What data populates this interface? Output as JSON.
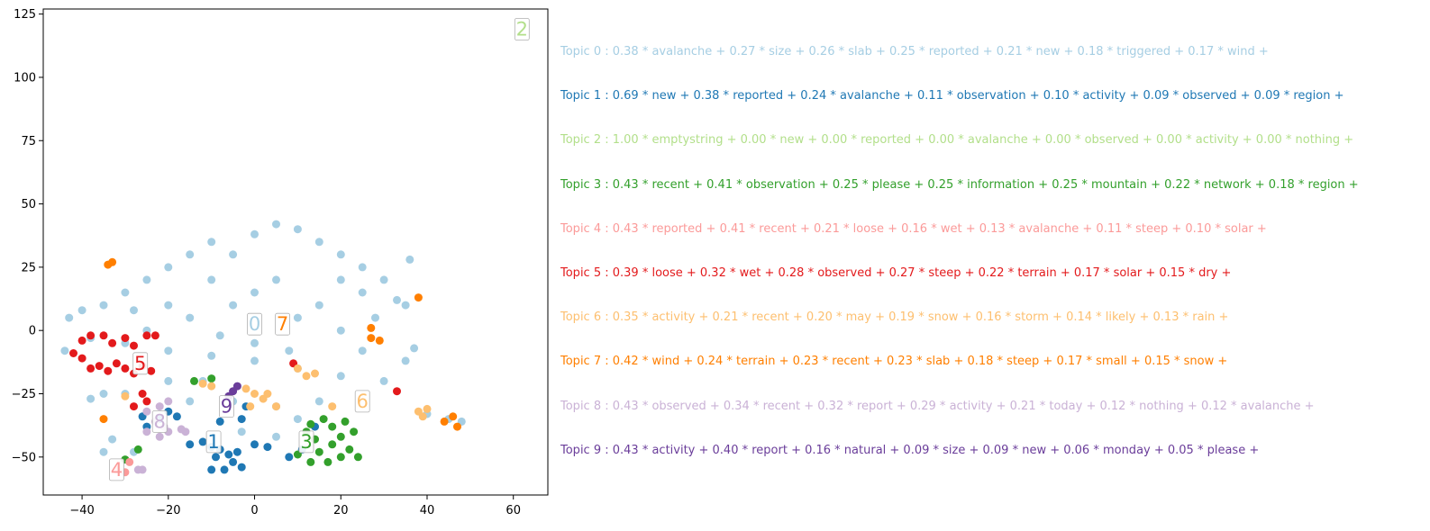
{
  "chart_data": {
    "type": "scatter",
    "title": "",
    "xlabel": "",
    "ylabel": "",
    "xlim": [
      -49,
      68
    ],
    "ylim": [
      -65,
      127
    ],
    "xticks": [
      -40,
      -20,
      0,
      20,
      40,
      60
    ],
    "xtick_labels": [
      "−40",
      "−20",
      "0",
      "20",
      "40",
      "60"
    ],
    "yticks": [
      -50,
      -25,
      0,
      25,
      50,
      75,
      100,
      125
    ],
    "ytick_labels": [
      "−50",
      "−25",
      "0",
      "25",
      "50",
      "75",
      "100",
      "125"
    ],
    "grid": false,
    "colors": [
      "#a6cee3",
      "#1f78b4",
      "#b2df8a",
      "#33a02c",
      "#fb9a99",
      "#e31a1c",
      "#fdbf6f",
      "#ff7f00",
      "#cab2d6",
      "#6a3d9a"
    ],
    "cluster_labels": [
      {
        "text": "0",
        "topic": 0,
        "x": 0,
        "y": 2.5
      },
      {
        "text": "1",
        "topic": 1,
        "x": -9.5,
        "y": -44
      },
      {
        "text": "2",
        "topic": 2,
        "x": 62,
        "y": 119
      },
      {
        "text": "3",
        "topic": 3,
        "x": 12,
        "y": -44
      },
      {
        "text": "4",
        "topic": 4,
        "x": -32,
        "y": -55
      },
      {
        "text": "5",
        "topic": 5,
        "x": -26.5,
        "y": -13
      },
      {
        "text": "6",
        "topic": 6,
        "x": 25,
        "y": -28
      },
      {
        "text": "7",
        "topic": 7,
        "x": 6.5,
        "y": 2.5
      },
      {
        "text": "8",
        "topic": 8,
        "x": -22,
        "y": -36
      },
      {
        "text": "9",
        "topic": 9,
        "x": -6.5,
        "y": -30
      }
    ],
    "series": [
      {
        "topic": 0,
        "points": [
          [
            -5,
            30
          ],
          [
            0,
            38
          ],
          [
            5,
            42
          ],
          [
            10,
            40
          ],
          [
            15,
            35
          ],
          [
            20,
            30
          ],
          [
            25,
            25
          ],
          [
            30,
            20
          ],
          [
            35,
            10
          ],
          [
            -10,
            35
          ],
          [
            -15,
            30
          ],
          [
            -20,
            25
          ],
          [
            -25,
            20
          ],
          [
            -30,
            15
          ],
          [
            -35,
            10
          ],
          [
            -40,
            8
          ],
          [
            -43,
            5
          ],
          [
            -38,
            -3
          ],
          [
            -30,
            -5
          ],
          [
            -20,
            -8
          ],
          [
            -10,
            -10
          ],
          [
            0,
            -12
          ],
          [
            10,
            -15
          ],
          [
            20,
            -18
          ],
          [
            30,
            -20
          ],
          [
            35,
            -12
          ],
          [
            -20,
            -20
          ],
          [
            -30,
            -25
          ],
          [
            -35,
            -25
          ],
          [
            -38,
            -27
          ],
          [
            -33,
            -43
          ],
          [
            -35,
            -48
          ],
          [
            -28,
            -48
          ],
          [
            -12,
            -20
          ],
          [
            -5,
            -28
          ],
          [
            5,
            -30
          ],
          [
            10,
            -35
          ],
          [
            40,
            -33
          ],
          [
            45,
            -35
          ],
          [
            48,
            -36
          ],
          [
            -44,
            -8
          ],
          [
            37,
            -7
          ],
          [
            36,
            28
          ],
          [
            -15,
            -28
          ],
          [
            15,
            -28
          ],
          [
            25,
            -8
          ],
          [
            28,
            5
          ],
          [
            33,
            12
          ],
          [
            -3,
            -40
          ],
          [
            5,
            -42
          ],
          [
            0,
            15
          ],
          [
            5,
            20
          ],
          [
            -5,
            10
          ],
          [
            10,
            5
          ],
          [
            -15,
            5
          ],
          [
            15,
            10
          ],
          [
            20,
            0
          ],
          [
            -25,
            0
          ],
          [
            -10,
            20
          ],
          [
            20,
            20
          ],
          [
            -20,
            10
          ],
          [
            25,
            15
          ],
          [
            0,
            -5
          ],
          [
            -8,
            -2
          ],
          [
            8,
            -8
          ],
          [
            -28,
            8
          ]
        ]
      },
      {
        "topic": 1,
        "points": [
          [
            -20,
            -32
          ],
          [
            -22,
            -35
          ],
          [
            -25,
            -38
          ],
          [
            -26,
            -34
          ],
          [
            -18,
            -34
          ],
          [
            -15,
            -45
          ],
          [
            -12,
            -44
          ],
          [
            -10,
            -46
          ],
          [
            -8,
            -47
          ],
          [
            -6,
            -49
          ],
          [
            -5,
            -52
          ],
          [
            -3,
            -54
          ],
          [
            -7,
            -55
          ],
          [
            -9,
            -50
          ],
          [
            -10,
            -55
          ],
          [
            -4,
            -48
          ],
          [
            -3,
            -35
          ],
          [
            0,
            -45
          ],
          [
            3,
            -46
          ],
          [
            8,
            -50
          ],
          [
            11,
            -47
          ],
          [
            14,
            -38
          ],
          [
            -8,
            -36
          ],
          [
            -2,
            -30
          ]
        ]
      },
      {
        "topic": 2,
        "points": []
      },
      {
        "topic": 3,
        "points": [
          [
            12,
            -40
          ],
          [
            14,
            -43
          ],
          [
            15,
            -48
          ],
          [
            18,
            -45
          ],
          [
            20,
            -42
          ],
          [
            22,
            -47
          ],
          [
            20,
            -50
          ],
          [
            24,
            -50
          ],
          [
            17,
            -52
          ],
          [
            13,
            -52
          ],
          [
            10,
            -49
          ],
          [
            23,
            -40
          ],
          [
            21,
            -36
          ],
          [
            18,
            -38
          ],
          [
            16,
            -35
          ],
          [
            13,
            -37
          ],
          [
            -14,
            -20
          ],
          [
            -10,
            -19
          ],
          [
            -27,
            -47
          ],
          [
            -30,
            -51
          ]
        ]
      },
      {
        "topic": 4,
        "points": [
          [
            -32,
            -55
          ],
          [
            -30,
            -56
          ],
          [
            -29,
            -52
          ]
        ]
      },
      {
        "topic": 5,
        "points": [
          [
            -42,
            -9
          ],
          [
            -40,
            -11
          ],
          [
            -38,
            -15
          ],
          [
            -36,
            -14
          ],
          [
            -34,
            -16
          ],
          [
            -32,
            -13
          ],
          [
            -30,
            -15
          ],
          [
            -28,
            -17
          ],
          [
            -26,
            -14
          ],
          [
            -24,
            -16
          ],
          [
            -38,
            -2
          ],
          [
            -35,
            -2
          ],
          [
            -30,
            -3
          ],
          [
            -25,
            -2
          ],
          [
            -23,
            -2
          ],
          [
            -28,
            -6
          ],
          [
            -33,
            -5
          ],
          [
            -40,
            -4
          ],
          [
            -26,
            -25
          ],
          [
            -25,
            -28
          ],
          [
            -28,
            -30
          ],
          [
            33,
            -24
          ],
          [
            9,
            -13
          ]
        ]
      },
      {
        "topic": 6,
        "points": [
          [
            -2,
            -23
          ],
          [
            0,
            -25
          ],
          [
            2,
            -27
          ],
          [
            5,
            -30
          ],
          [
            -1,
            -30
          ],
          [
            3,
            -25
          ],
          [
            10,
            -15
          ],
          [
            12,
            -18
          ],
          [
            14,
            -17
          ],
          [
            -12,
            -21
          ],
          [
            -10,
            -22
          ],
          [
            38,
            -32
          ],
          [
            39,
            -34
          ],
          [
            40,
            -31
          ],
          [
            18,
            -30
          ],
          [
            -30,
            -26
          ]
        ]
      },
      {
        "topic": 7,
        "points": [
          [
            -34,
            26
          ],
          [
            -33,
            27
          ],
          [
            -35,
            -35
          ],
          [
            38,
            13
          ],
          [
            29,
            -4
          ],
          [
            27,
            -3
          ],
          [
            27,
            1
          ],
          [
            44,
            -36
          ],
          [
            46,
            -34
          ],
          [
            47,
            -38
          ]
        ]
      },
      {
        "topic": 8,
        "points": [
          [
            -25,
            -32
          ],
          [
            -22,
            -30
          ],
          [
            -23,
            -36
          ],
          [
            -21,
            -38
          ],
          [
            -20,
            -40
          ],
          [
            -22,
            -42
          ],
          [
            -25,
            -40
          ],
          [
            -16,
            -40
          ],
          [
            -17,
            -39
          ],
          [
            -27,
            -55
          ],
          [
            -26,
            -55
          ],
          [
            -20,
            -28
          ]
        ]
      },
      {
        "topic": 9,
        "points": [
          [
            -5,
            -24
          ],
          [
            -6,
            -26
          ],
          [
            -4,
            -22
          ]
        ]
      }
    ]
  },
  "topics": [
    {
      "text": "Topic 0 : 0.38 * avalanche + 0.27 * size + 0.26 * slab + 0.25 * reported + 0.21 * new + 0.18 * triggered + 0.17 * wind +",
      "color": "#a6cee3"
    },
    {
      "text": "Topic 1 : 0.69 * new + 0.38 * reported + 0.24 * avalanche + 0.11 * observation + 0.10 * activity + 0.09 * observed + 0.09 * region +",
      "color": "#1f78b4"
    },
    {
      "text": "Topic 2 : 1.00 * emptystring + 0.00 * new + 0.00 * reported + 0.00 * avalanche + 0.00 * observed + 0.00 * activity + 0.00 * nothing +",
      "color": "#b2df8a"
    },
    {
      "text": "Topic 3 : 0.43 * recent + 0.41 * observation + 0.25 * please + 0.25 * information + 0.25 * mountain + 0.22 * network + 0.18 * region +",
      "color": "#33a02c"
    },
    {
      "text": "Topic 4 : 0.43 * reported + 0.41 * recent + 0.21 * loose + 0.16 * wet + 0.13 * avalanche + 0.11 * steep + 0.10 * solar +",
      "color": "#fb9a99"
    },
    {
      "text": "Topic 5 : 0.39 * loose + 0.32 * wet + 0.28 * observed + 0.27 * steep + 0.22 * terrain + 0.17 * solar + 0.15 * dry +",
      "color": "#e31a1c"
    },
    {
      "text": "Topic 6 : 0.35 * activity + 0.21 * recent + 0.20 * may + 0.19 * snow + 0.16 * storm + 0.14 * likely + 0.13 * rain +",
      "color": "#fdbf6f"
    },
    {
      "text": "Topic 7 : 0.42 * wind + 0.24 * terrain + 0.23 * recent + 0.23 * slab + 0.18 * steep + 0.17 * small + 0.15 * snow +",
      "color": "#ff7f00"
    },
    {
      "text": "Topic 8 : 0.43 * observed + 0.34 * recent + 0.32 * report + 0.29 * activity + 0.21 * today + 0.12 * nothing + 0.12 * avalanche +",
      "color": "#cab2d6"
    },
    {
      "text": "Topic 9 : 0.43 * activity + 0.40 * report + 0.16 * natural + 0.09 * size + 0.09 * new + 0.06 * monday + 0.05 * please +",
      "color": "#6a3d9a"
    }
  ]
}
